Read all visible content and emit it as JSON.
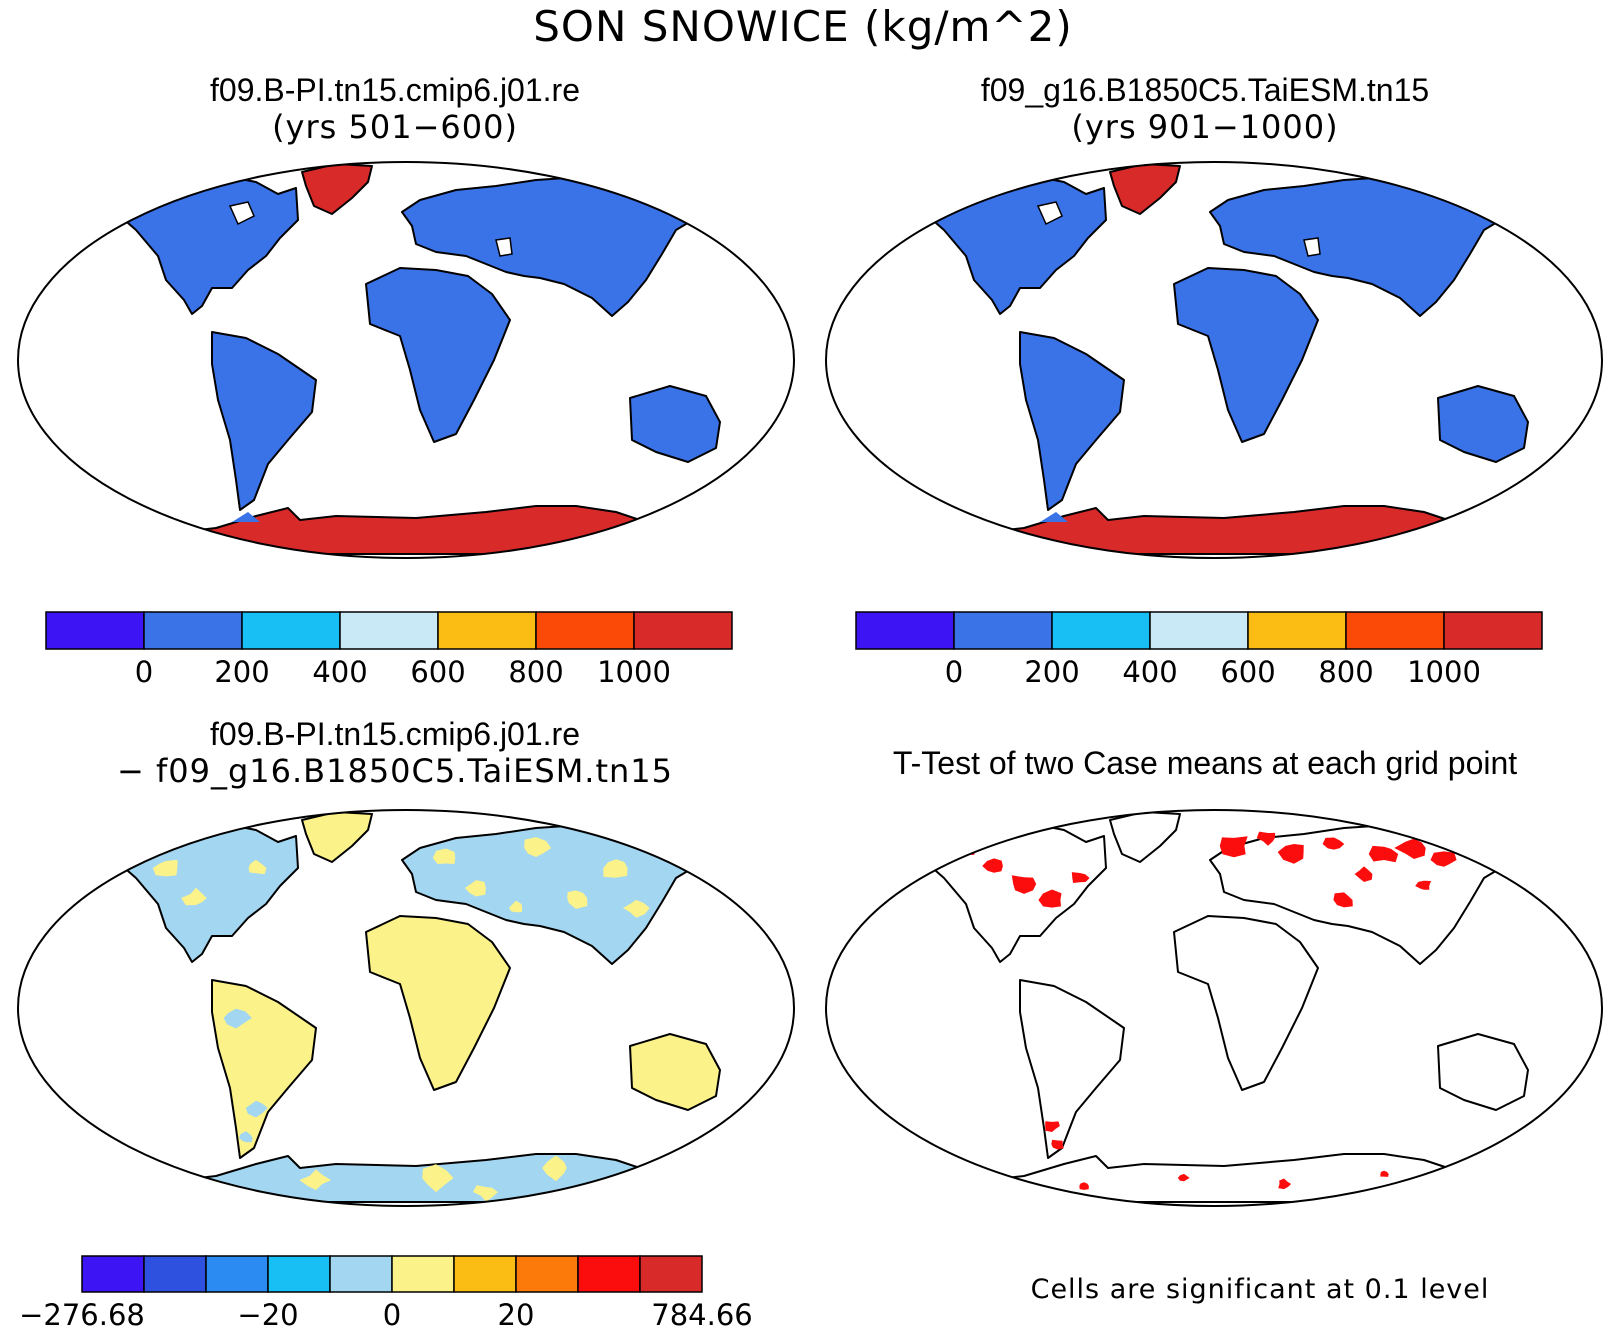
{
  "title": "SON SNOWICE (kg/m^2)",
  "panels": [
    {
      "name": "case1",
      "line1": "f09.B-PI.tn15.cmip6.j01.re",
      "line2": "(yrs 501−600)",
      "fill": "mean",
      "colorbar": {
        "colors": [
          "#3d15f5",
          "#3a72e8",
          "#18bff5",
          "#c9e9f7",
          "#fbbc14",
          "#fb4a08",
          "#d82a29"
        ],
        "labels": [
          "0",
          "200",
          "400",
          "600",
          "800",
          "1000"
        ]
      }
    },
    {
      "name": "case2",
      "line1": "f09_g16.B1850C5.TaiESM.tn15",
      "line2": "(yrs 901−1000)",
      "fill": "mean",
      "colorbar": {
        "colors": [
          "#3d15f5",
          "#3a72e8",
          "#18bff5",
          "#c9e9f7",
          "#fbbc14",
          "#fb4a08",
          "#d82a29"
        ],
        "labels": [
          "0",
          "200",
          "400",
          "600",
          "800",
          "1000"
        ]
      }
    },
    {
      "name": "difference",
      "line1": "f09.B-PI.tn15.cmip6.j01.re",
      "line2": "− f09_g16.B1850C5.TaiESM.tn15",
      "fill": "diff",
      "colorbar": {
        "colors": [
          "#3d15f5",
          "#2f51e0",
          "#2b8bf3",
          "#18bff5",
          "#a3d6f1",
          "#fbf28a",
          "#fbbc14",
          "#fb7a09",
          "#fc0d0d",
          "#d82a29"
        ],
        "labels": [
          "−276.68",
          "−20",
          "0",
          "20",
          "784.66"
        ]
      }
    },
    {
      "name": "ttest",
      "line1": "T-Test of two Case means at each grid point",
      "line2": "",
      "fill": "ttest"
    }
  ],
  "footnote": "Cells are significant at 0.1 level",
  "colors": {
    "land_low": "#3a72e8",
    "ice_high": "#d82a29",
    "diff_pos": "#fbf28a",
    "diff_neg": "#a3d6f1",
    "significant": "#fc0d0d"
  }
}
